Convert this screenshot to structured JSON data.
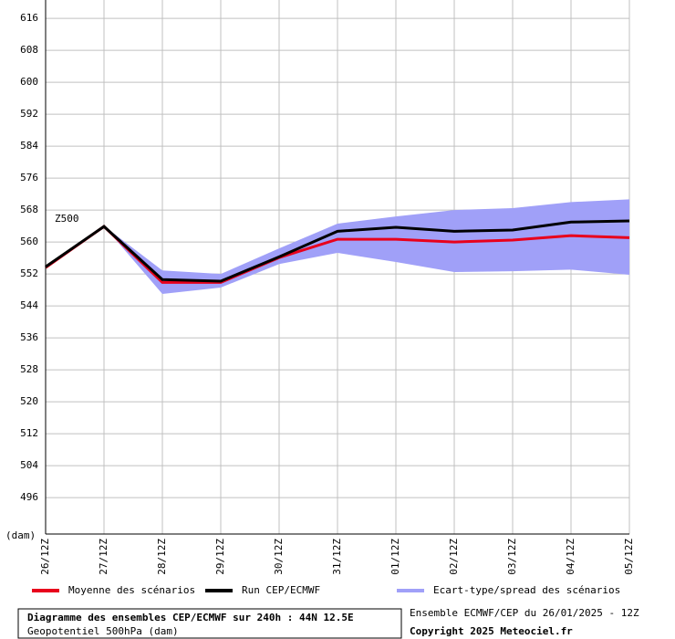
{
  "chart_data": {
    "type": "line",
    "annotation": "Z500",
    "y_unit": "(dam)",
    "categories": [
      "26/12Z",
      "27/12Z",
      "28/12Z",
      "29/12Z",
      "30/12Z",
      "31/12Z",
      "01/12Z",
      "02/12Z",
      "03/12Z",
      "04/12Z",
      "05/12Z"
    ],
    "ylim": [
      486.9,
      620.6
    ],
    "yticks": [
      496,
      504,
      512,
      520,
      528,
      536,
      544,
      552,
      560,
      568,
      576,
      584,
      592,
      600,
      608,
      616
    ],
    "grid": true,
    "spread": {
      "name": "Ecart-type/spread des scénarios",
      "color": "#a0a0f8",
      "low": [
        553.5,
        564,
        547,
        548.6,
        554.5,
        557.3,
        555,
        552.5,
        552.7,
        553.1,
        551.8
      ],
      "high": [
        553.5,
        564,
        552.9,
        552,
        558.4,
        564.6,
        566.4,
        568,
        568.5,
        570,
        570.7
      ]
    },
    "series": [
      {
        "name": "Moyenne des scénarios",
        "color": "#e8001c",
        "values": [
          553.6,
          563.9,
          549.9,
          549.9,
          556.1,
          560.7,
          560.7,
          560,
          560.5,
          561.6,
          561.1
        ]
      },
      {
        "name": "Run CEP/ECMWF",
        "color": "#000000",
        "values": [
          553.8,
          563.9,
          550.6,
          550.2,
          556.3,
          562.7,
          563.7,
          562.7,
          563,
          565,
          565.3
        ]
      }
    ],
    "footer": {
      "title": "Diagramme des ensembles CEP/ECMWF sur 240h : 44N 12.5E",
      "subtitle": "Geopotentiel 500hPa (dam)",
      "run": "Ensemble ECMWF/CEP du 26/01/2025 - 12Z",
      "copyright": "Copyright 2025 Meteociel.fr"
    }
  }
}
